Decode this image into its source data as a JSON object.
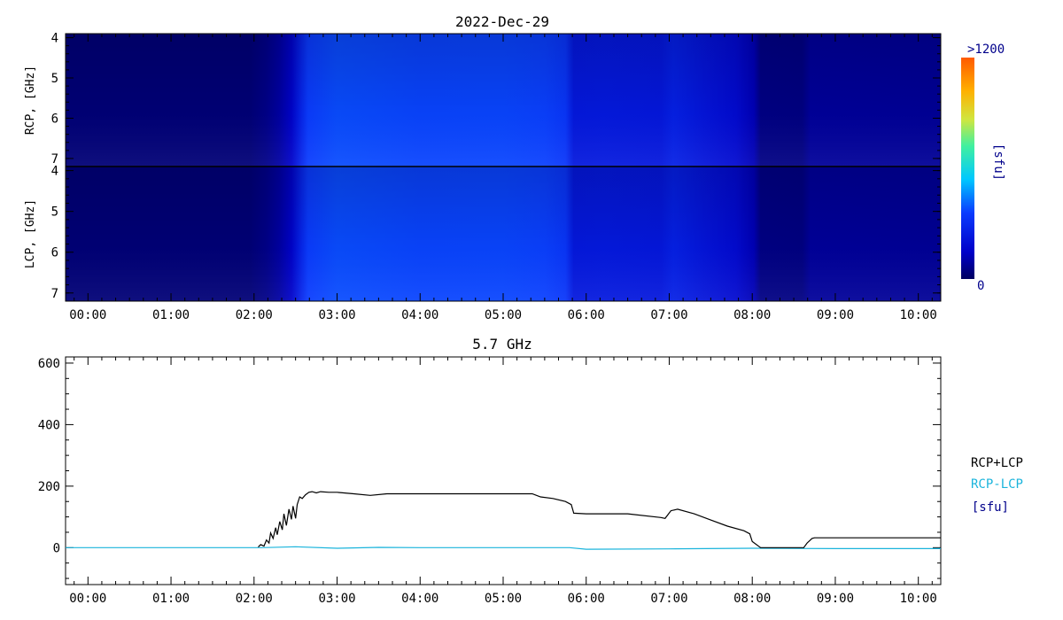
{
  "figure": {
    "spectrogram_title": "2022-Dec-29",
    "lightcurve_title": "5.7 GHz"
  },
  "colors": {
    "background": "#ffffff",
    "axis": "#000000",
    "rcp_plus_lcp": "#000000",
    "rcp_minus_lcp": "#1ab4dc",
    "unit_label": "#00008b",
    "colorbar_label": "#00008b"
  },
  "colorbar": {
    "max_label": ">1200",
    "min_label": "0",
    "unit": "[sfu]",
    "range": [
      0,
      1200
    ]
  },
  "chart_data": [
    {
      "type": "heatmap",
      "panel": "RCP",
      "ylabel": "RCP, [GHz]",
      "ylim": [
        3.9,
        7.2
      ],
      "yticks": [
        4,
        5,
        6,
        7
      ],
      "xlim": [
        -0.27,
        10.27
      ],
      "xticks": [
        "00:00",
        "01:00",
        "02:00",
        "03:00",
        "04:00",
        "05:00",
        "06:00",
        "07:00",
        "08:00",
        "09:00",
        "10:00"
      ],
      "time_profile": [
        [
          -0.27,
          30
        ],
        [
          1.95,
          30
        ],
        [
          2.15,
          55
        ],
        [
          2.3,
          90
        ],
        [
          2.45,
          150
        ],
        [
          2.55,
          260
        ],
        [
          2.65,
          360
        ],
        [
          3.0,
          380
        ],
        [
          4.0,
          370
        ],
        [
          5.0,
          372
        ],
        [
          5.5,
          365
        ],
        [
          5.75,
          340
        ],
        [
          5.85,
          230
        ],
        [
          6.2,
          235
        ],
        [
          6.9,
          225
        ],
        [
          7.05,
          260
        ],
        [
          7.4,
          220
        ],
        [
          7.8,
          180
        ],
        [
          8.02,
          120
        ],
        [
          8.1,
          50
        ],
        [
          8.6,
          45
        ],
        [
          8.7,
          80
        ],
        [
          10.27,
          75
        ]
      ]
    },
    {
      "type": "heatmap",
      "panel": "LCP",
      "ylabel": "LCP, [GHz]",
      "ylim": [
        3.9,
        7.2
      ],
      "yticks": [
        4,
        5,
        6,
        7
      ],
      "xlim": [
        -0.27,
        10.27
      ],
      "xticks": [
        "00:00",
        "01:00",
        "02:00",
        "03:00",
        "04:00",
        "05:00",
        "06:00",
        "07:00",
        "08:00",
        "09:00",
        "10:00"
      ],
      "time_profile": [
        [
          -0.27,
          30
        ],
        [
          1.95,
          30
        ],
        [
          2.15,
          55
        ],
        [
          2.3,
          90
        ],
        [
          2.45,
          150
        ],
        [
          2.55,
          260
        ],
        [
          2.65,
          360
        ],
        [
          3.0,
          380
        ],
        [
          4.0,
          370
        ],
        [
          5.0,
          372
        ],
        [
          5.5,
          365
        ],
        [
          5.75,
          340
        ],
        [
          5.85,
          230
        ],
        [
          6.2,
          235
        ],
        [
          6.9,
          225
        ],
        [
          7.05,
          260
        ],
        [
          7.4,
          220
        ],
        [
          7.8,
          180
        ],
        [
          8.02,
          120
        ],
        [
          8.1,
          50
        ],
        [
          8.6,
          45
        ],
        [
          8.7,
          80
        ],
        [
          10.27,
          75
        ]
      ]
    },
    {
      "type": "line",
      "title": "5.7 GHz",
      "ylim": [
        -120,
        620
      ],
      "yticks": [
        0,
        200,
        400,
        600
      ],
      "xlim": [
        -0.27,
        10.27
      ],
      "xticks": [
        "00:00",
        "01:00",
        "02:00",
        "03:00",
        "04:00",
        "05:00",
        "06:00",
        "07:00",
        "08:00",
        "09:00",
        "10:00"
      ],
      "legend": [
        "RCP+LCP",
        "RCP-LCP"
      ],
      "unit": "[sfu]",
      "series": [
        {
          "name": "RCP+LCP",
          "x": [
            2.05,
            2.08,
            2.12,
            2.15,
            2.18,
            2.2,
            2.23,
            2.26,
            2.28,
            2.31,
            2.34,
            2.36,
            2.39,
            2.42,
            2.45,
            2.47,
            2.5,
            2.52,
            2.55,
            2.58,
            2.62,
            2.66,
            2.7,
            2.75,
            2.8,
            2.9,
            3.0,
            3.2,
            3.4,
            3.6,
            3.8,
            4.0,
            4.3,
            4.6,
            5.0,
            5.35,
            5.45,
            5.6,
            5.75,
            5.82,
            5.85,
            6.0,
            6.5,
            6.9,
            6.95,
            7.02,
            7.1,
            7.3,
            7.5,
            7.7,
            7.9,
            7.97,
            8.0,
            8.1,
            8.62,
            8.66,
            8.72,
            8.75,
            10.27
          ],
          "y": [
            2,
            10,
            5,
            25,
            15,
            48,
            30,
            65,
            42,
            85,
            58,
            110,
            72,
            125,
            92,
            135,
            95,
            140,
            165,
            160,
            172,
            180,
            182,
            178,
            182,
            180,
            180,
            175,
            170,
            175,
            175,
            175,
            175,
            175,
            175,
            175,
            165,
            160,
            150,
            140,
            112,
            110,
            110,
            98,
            95,
            120,
            125,
            110,
            90,
            70,
            55,
            45,
            20,
            0,
            0,
            15,
            30,
            32,
            32
          ]
        },
        {
          "name": "RCP-LCP",
          "x": [
            -0.27,
            2.0,
            2.1,
            2.5,
            3.0,
            3.5,
            4.0,
            5.0,
            5.8,
            6.0,
            7.0,
            8.0,
            9.0,
            10.27
          ],
          "y": [
            0,
            0,
            0,
            3,
            -2,
            1,
            0,
            0,
            0,
            -5,
            -4,
            -2,
            -3,
            -3
          ]
        }
      ]
    }
  ]
}
